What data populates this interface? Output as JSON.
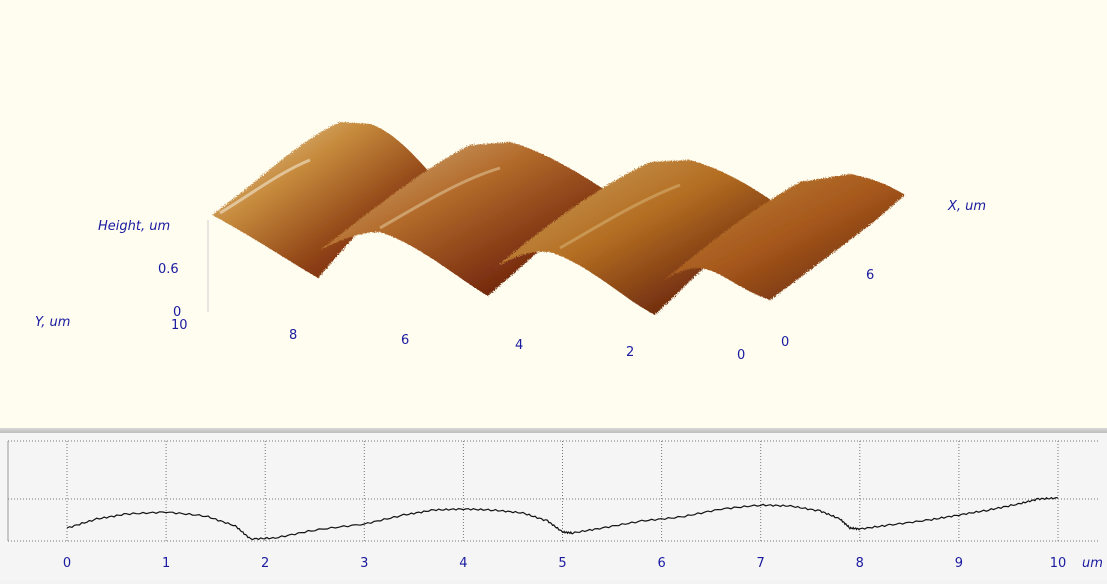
{
  "view3d": {
    "height_label": "Height, um",
    "x_label": "X, um",
    "y_label": "Y, um",
    "z_ticks": [
      "0.6",
      "0"
    ],
    "y_ticks": [
      "10",
      "8",
      "6",
      "4",
      "2",
      "0"
    ],
    "x_ticks": [
      "0",
      "6"
    ]
  },
  "chart_data": {
    "type": "line",
    "x_unit": "um",
    "xlim": [
      0,
      10
    ],
    "x_ticks": [
      "0",
      "1",
      "2",
      "3",
      "4",
      "5",
      "6",
      "7",
      "8",
      "9",
      "10"
    ],
    "grid": true,
    "series": [
      {
        "x": [
          0,
          0.3,
          0.6,
          1.0,
          1.4,
          1.7,
          1.85,
          2.1,
          2.5,
          3.0,
          3.4,
          3.7,
          4.0,
          4.3,
          4.6,
          4.85,
          5.0,
          5.1,
          5.4,
          5.8,
          6.2,
          6.6,
          7.0,
          7.3,
          7.6,
          7.8,
          7.9,
          8.0,
          8.3,
          8.7,
          9.0,
          9.3,
          9.6,
          9.8,
          10.0
        ],
        "y": [
          0.13,
          0.22,
          0.27,
          0.29,
          0.25,
          0.15,
          0.02,
          0.03,
          0.11,
          0.17,
          0.26,
          0.31,
          0.32,
          0.31,
          0.28,
          0.2,
          0.09,
          0.08,
          0.13,
          0.2,
          0.24,
          0.32,
          0.36,
          0.35,
          0.3,
          0.22,
          0.13,
          0.12,
          0.16,
          0.21,
          0.26,
          0.31,
          0.37,
          0.42,
          0.43
        ]
      }
    ]
  }
}
